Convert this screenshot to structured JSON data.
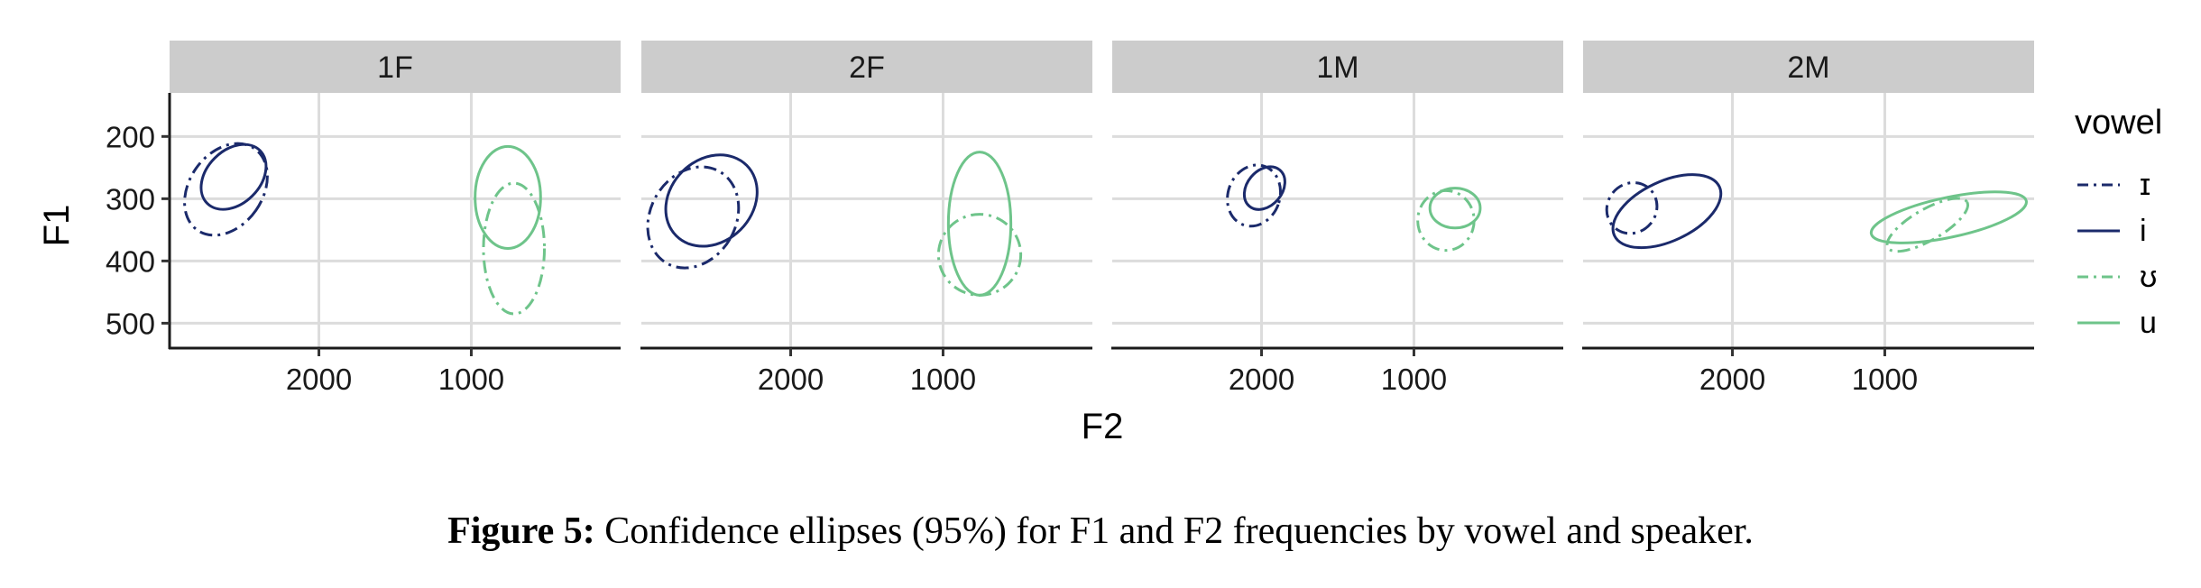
{
  "figure": {
    "caption_label": "Figure 5:",
    "caption_text": " Confidence ellipses (95%) for F1 and F2 frequencies by vowel and speaker."
  },
  "chart_data": {
    "type": "ellipse",
    "confidence_level": "95%",
    "xlabel": "F2",
    "ylabel": "F1",
    "x_reversed": true,
    "y_reversed": true,
    "xlim": [
      2980,
      20
    ],
    "ylim": [
      130,
      540
    ],
    "xticks": [
      2000,
      1000
    ],
    "yticks": [
      200,
      300,
      400,
      500
    ],
    "grid": true,
    "legend": {
      "title": "vowel",
      "position": "right",
      "entries": [
        {
          "label": "ɪ",
          "color": "#1b2a6b",
          "linetype": "dashdot"
        },
        {
          "label": "i",
          "color": "#1b2a6b",
          "linetype": "solid"
        },
        {
          "label": "ʊ",
          "color": "#6ec48a",
          "linetype": "dashdot"
        },
        {
          "label": "u",
          "color": "#6ec48a",
          "linetype": "solid"
        }
      ]
    },
    "panels": [
      {
        "speaker": "1F",
        "ellipses": [
          {
            "vowel": "ɪ",
            "cx_f2": 2610,
            "cy_f1": 285,
            "rx_f2": 240,
            "ry_f1": 80,
            "angle_deg": 35
          },
          {
            "vowel": "i",
            "cx_f2": 2560,
            "cy_f1": 265,
            "rx_f2": 175,
            "ry_f1": 60,
            "angle_deg": 45
          },
          {
            "vowel": "ʊ",
            "cx_f2": 720,
            "cy_f1": 380,
            "rx_f2": 200,
            "ry_f1": 105,
            "angle_deg": 0
          },
          {
            "vowel": "u",
            "cx_f2": 760,
            "cy_f1": 298,
            "rx_f2": 215,
            "ry_f1": 82,
            "angle_deg": 0
          }
        ]
      },
      {
        "speaker": "2F",
        "ellipses": [
          {
            "vowel": "ɪ",
            "cx_f2": 2640,
            "cy_f1": 330,
            "rx_f2": 280,
            "ry_f1": 85,
            "angle_deg": 30
          },
          {
            "vowel": "i",
            "cx_f2": 2520,
            "cy_f1": 303,
            "rx_f2": 270,
            "ry_f1": 80,
            "angle_deg": 45
          },
          {
            "vowel": "ʊ",
            "cx_f2": 760,
            "cy_f1": 390,
            "rx_f2": 270,
            "ry_f1": 65,
            "angle_deg": 0
          },
          {
            "vowel": "u",
            "cx_f2": 760,
            "cy_f1": 340,
            "rx_f2": 205,
            "ry_f1": 115,
            "angle_deg": 0
          }
        ]
      },
      {
        "speaker": "1M",
        "ellipses": [
          {
            "vowel": "ɪ",
            "cx_f2": 2050,
            "cy_f1": 295,
            "rx_f2": 170,
            "ry_f1": 50,
            "angle_deg": 20
          },
          {
            "vowel": "i",
            "cx_f2": 1980,
            "cy_f1": 283,
            "rx_f2": 115,
            "ry_f1": 38,
            "angle_deg": 40
          },
          {
            "vowel": "ʊ",
            "cx_f2": 790,
            "cy_f1": 335,
            "rx_f2": 185,
            "ry_f1": 48,
            "angle_deg": 0
          },
          {
            "vowel": "u",
            "cx_f2": 730,
            "cy_f1": 315,
            "rx_f2": 165,
            "ry_f1": 32,
            "angle_deg": 0
          }
        ]
      },
      {
        "speaker": "2M",
        "ellipses": [
          {
            "vowel": "ɪ",
            "cx_f2": 2660,
            "cy_f1": 315,
            "rx_f2": 160,
            "ry_f1": 42,
            "angle_deg": 40
          },
          {
            "vowel": "i",
            "cx_f2": 2430,
            "cy_f1": 320,
            "rx_f2": 380,
            "ry_f1": 48,
            "angle_deg": -25
          },
          {
            "vowel": "ʊ",
            "cx_f2": 720,
            "cy_f1": 342,
            "rx_f2": 300,
            "ry_f1": 25,
            "angle_deg": -30
          },
          {
            "vowel": "u",
            "cx_f2": 580,
            "cy_f1": 330,
            "rx_f2": 520,
            "ry_f1": 32,
            "angle_deg": -12
          }
        ]
      }
    ]
  }
}
